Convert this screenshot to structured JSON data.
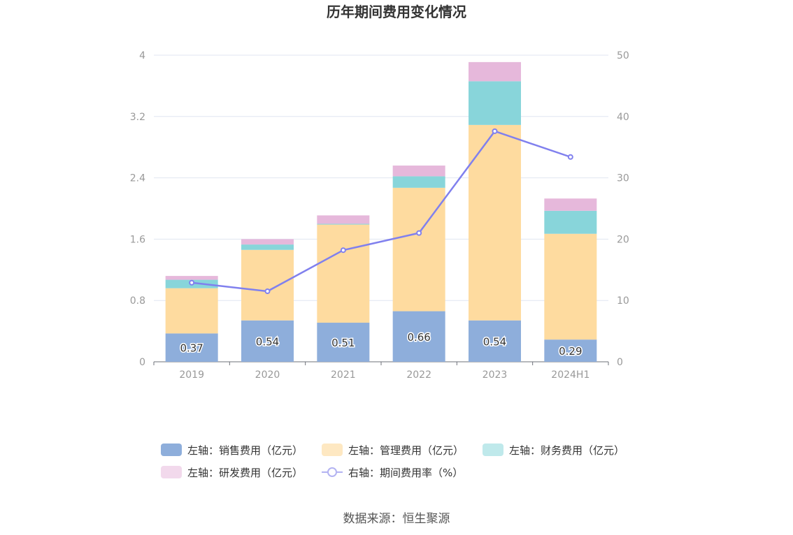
{
  "chart_data": {
    "type": "bar",
    "title": "历年期间费用变化情况",
    "categories": [
      "2019",
      "2020",
      "2021",
      "2022",
      "2023",
      "2024H1"
    ],
    "stacked": true,
    "y_left": {
      "ylim": [
        0,
        4
      ],
      "ticks": [
        "0",
        "0.8",
        "1.6",
        "2.4",
        "3.2",
        "4"
      ]
    },
    "y_right": {
      "ylim": [
        0,
        50
      ],
      "ticks": [
        "0",
        "10",
        "20",
        "30",
        "40",
        "50"
      ]
    },
    "series": [
      {
        "name": "左轴：销售费用（亿元）",
        "type": "bar",
        "axis": "left",
        "color": "#8eaedb",
        "values": [
          0.37,
          0.54,
          0.51,
          0.66,
          0.54,
          0.29
        ],
        "labels": [
          "0.37",
          "0.54",
          "0.51",
          "0.66",
          "0.54",
          "0.29"
        ]
      },
      {
        "name": "左轴：管理费用（亿元）",
        "type": "bar",
        "axis": "left",
        "color": "#fedb9f",
        "values": [
          0.59,
          0.92,
          1.28,
          1.61,
          2.55,
          1.38
        ]
      },
      {
        "name": "左轴：财务费用（亿元）",
        "type": "bar",
        "axis": "left",
        "color": "#88d5da",
        "values": [
          0.11,
          0.07,
          0.01,
          0.15,
          0.57,
          0.3
        ]
      },
      {
        "name": "左轴：研发费用（亿元）",
        "type": "bar",
        "axis": "left",
        "color": "#e6b8db",
        "values": [
          0.05,
          0.07,
          0.11,
          0.14,
          0.25,
          0.16
        ]
      },
      {
        "name": "右轴：期间费用率（%）",
        "type": "line",
        "axis": "right",
        "color": "#8080ee",
        "values": [
          12.9,
          11.5,
          18.2,
          21.0,
          37.6,
          33.4
        ]
      }
    ],
    "legend_position": "bottom",
    "grid": true
  },
  "source": "数据来源：恒生聚源"
}
